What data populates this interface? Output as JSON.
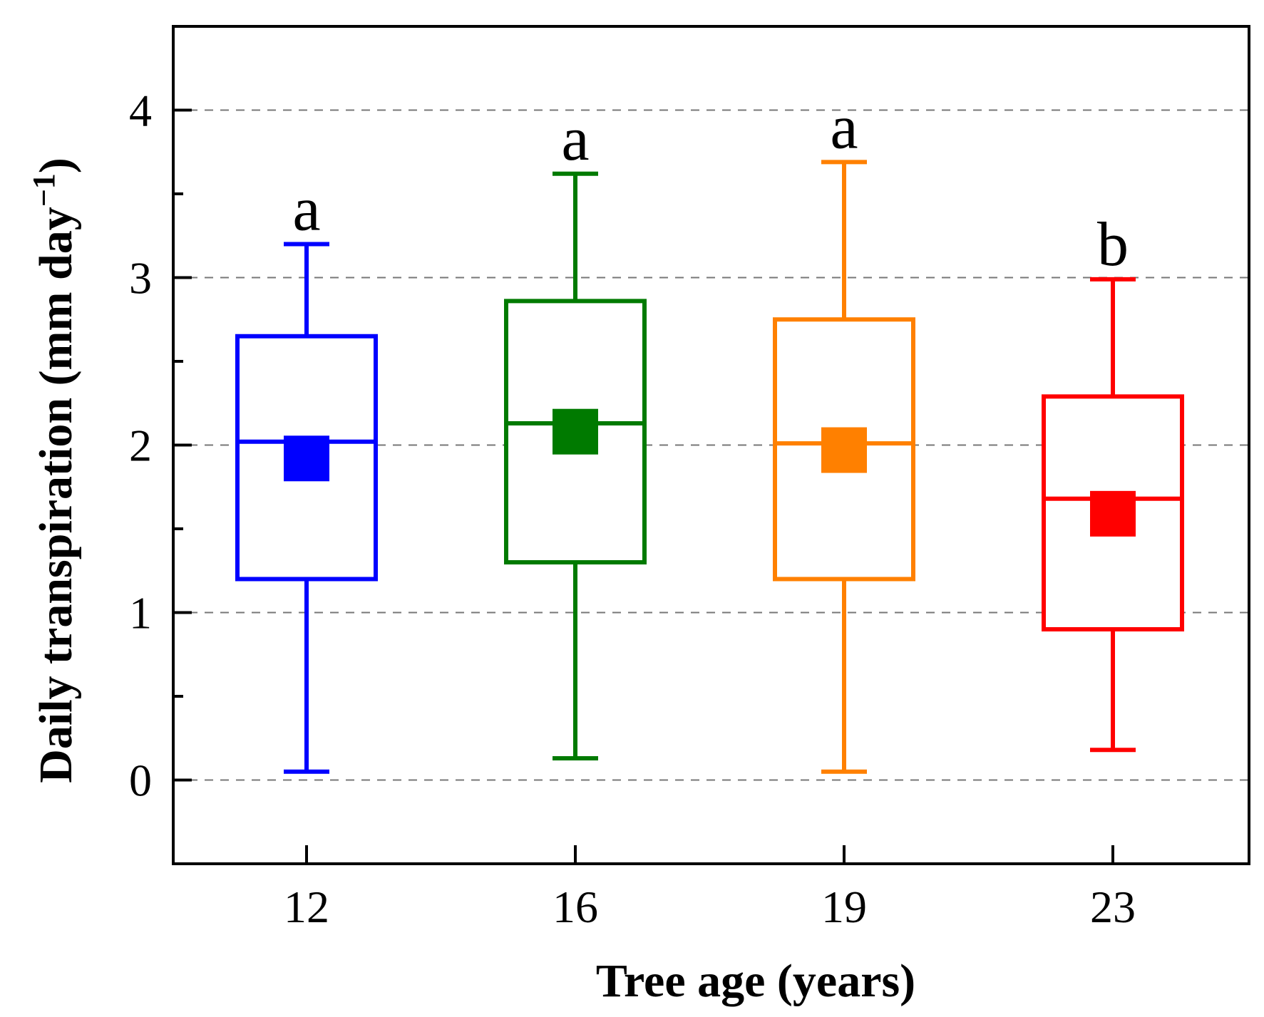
{
  "chart_data": {
    "type": "box",
    "xlabel": "Tree age (years)",
    "ylabel": "Daily transpiration (mm day",
    "ylabel_superscript": "−1",
    "ylabel_close": ")",
    "ylim": [
      -0.5,
      4.5
    ],
    "yticks": [
      0,
      1,
      2,
      3,
      4
    ],
    "yticks_labels": [
      "0",
      "1",
      "2",
      "3",
      "4"
    ],
    "grid": "dashed horizontal at major ticks",
    "boxes": [
      {
        "category": "12",
        "color": "#0000ff",
        "whisker_low": 0.05,
        "q1": 1.2,
        "median": 2.02,
        "q3": 2.65,
        "whisker_high": 3.2,
        "mean": 1.92,
        "significance": "a"
      },
      {
        "category": "16",
        "color": "#007a00",
        "whisker_low": 0.13,
        "q1": 1.3,
        "median": 2.13,
        "q3": 2.86,
        "whisker_high": 3.62,
        "mean": 2.08,
        "significance": "a"
      },
      {
        "category": "19",
        "color": "#ff8000",
        "whisker_low": 0.05,
        "q1": 1.2,
        "median": 2.01,
        "q3": 2.75,
        "whisker_high": 3.69,
        "mean": 1.97,
        "significance": "a"
      },
      {
        "category": "23",
        "color": "#ff0000",
        "whisker_low": 0.18,
        "q1": 0.9,
        "median": 1.68,
        "q3": 2.29,
        "whisker_high": 2.99,
        "mean": 1.59,
        "significance": "b"
      }
    ]
  }
}
